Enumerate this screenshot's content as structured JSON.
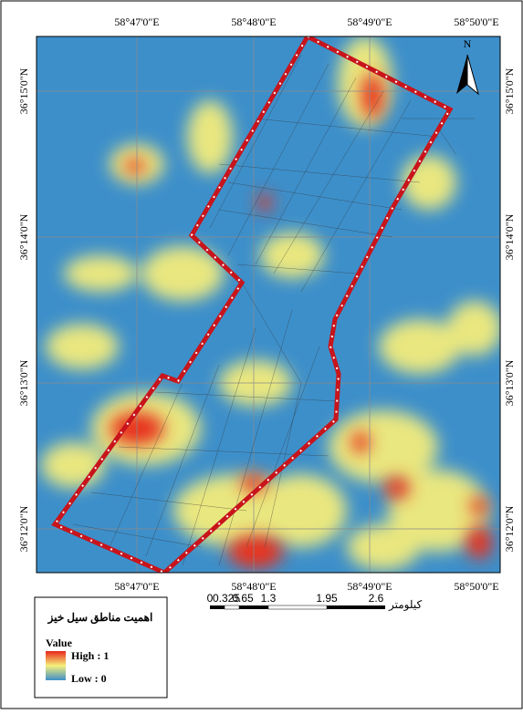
{
  "map": {
    "north": "N",
    "top_labels": [
      "58°47'0\"E",
      "58°48'0\"E",
      "58°49'0\"E",
      "58°50'0\"E"
    ],
    "bottom_labels": [
      "58°47'0\"E",
      "58°48'0\"E",
      "58°49'0\"E",
      "58°50'0\"E"
    ],
    "left_labels": [
      "36°15'0\"N",
      "36°14'0\"N",
      "36°13'0\"N",
      "36°12'0\"N"
    ],
    "right_labels": [
      "36°15'0\"N",
      "36°14'0\"N",
      "36°13'0\"N",
      "36°12'0\"N"
    ]
  },
  "legend": {
    "title": "اهمیت مناطق سیل خیز",
    "field": "Value",
    "high": "High : 1",
    "low": "Low : 0"
  },
  "scale_bar": {
    "labels": [
      "0",
      "0.325",
      "0.65",
      "1.3",
      "1.95",
      "2.6"
    ],
    "unit": "کیلومتر"
  }
}
